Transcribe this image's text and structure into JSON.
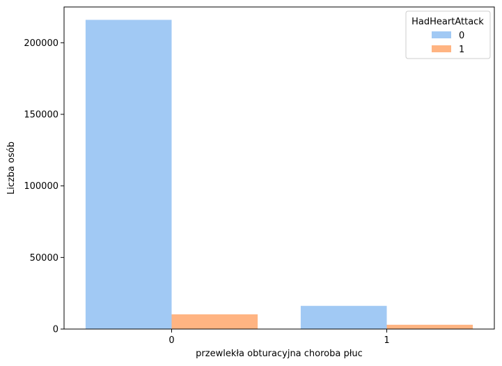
{
  "chart_data": {
    "type": "bar",
    "title": "",
    "xlabel": "przewlekła obturacyjna choroba płuc",
    "ylabel": "Liczba osób",
    "categories": [
      "0",
      "1"
    ],
    "series": [
      {
        "name": "0",
        "values": [
          216000,
          16200
        ],
        "color": "#a1c9f4"
      },
      {
        "name": "1",
        "values": [
          10300,
          3000
        ],
        "color": "#ffb482"
      }
    ],
    "ylim": [
      0,
      225000
    ],
    "yticks": [
      0,
      50000,
      100000,
      150000,
      200000
    ],
    "ytick_labels": [
      "0",
      "50000",
      "100000",
      "150000",
      "200000"
    ],
    "grid": false,
    "legend": {
      "title": "HadHeartAttack",
      "placement": "top-right"
    }
  }
}
